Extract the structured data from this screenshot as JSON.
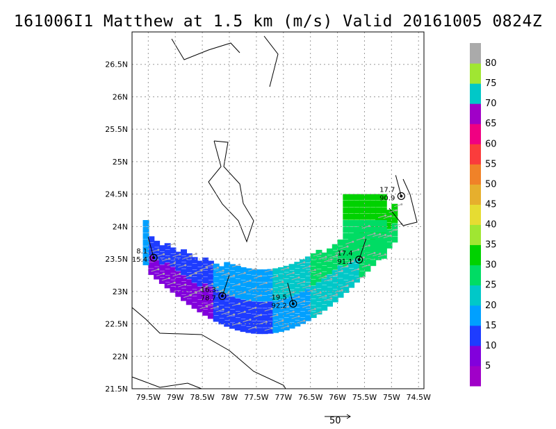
{
  "title": "161006I1 Matthew at 1.5 km (m/s) Valid 20161005 0824Z",
  "axes": {
    "lon_ticks": [
      "79.5W",
      "79W",
      "78.5W",
      "78W",
      "77.5W",
      "77W",
      "76.5W",
      "76W",
      "75.5W",
      "75W",
      "74.5W"
    ],
    "lat_ticks": [
      "21.5N",
      "22N",
      "22.5N",
      "23N",
      "23.5N",
      "24N",
      "24.5N",
      "25N",
      "25.5N",
      "26N",
      "26.5N"
    ],
    "lon_range": [
      -79.8,
      -74.4
    ],
    "lat_range": [
      21.5,
      27.0
    ],
    "grid": true
  },
  "colorbar": {
    "labels": [
      "5",
      "10",
      "15",
      "20",
      "25",
      "30",
      "35",
      "40",
      "45",
      "50",
      "55",
      "60",
      "65",
      "70",
      "75",
      "80"
    ],
    "colors": [
      "#a000c8",
      "#8200dc",
      "#1e3cff",
      "#00a0ff",
      "#00c8c8",
      "#00dc64",
      "#00d200",
      "#a0e632",
      "#e6dc32",
      "#e6af2d",
      "#f08228",
      "#fa3c3c",
      "#f00082",
      "#a000c8",
      "#00c8c8",
      "#a0e632",
      "#aaaaaa"
    ]
  },
  "storm_centers": [
    {
      "speed": "8.1",
      "pressure": "15.4",
      "lon": -79.4,
      "lat": 23.52
    },
    {
      "speed": "16.3",
      "pressure": "78.7",
      "lon": -78.13,
      "lat": 22.93
    },
    {
      "speed": "19.5",
      "pressure": "92.2",
      "lon": -76.82,
      "lat": 22.81
    },
    {
      "speed": "17.4",
      "pressure": "91.1",
      "lon": -75.6,
      "lat": 23.49
    },
    {
      "speed": "17.7",
      "pressure": "90.9",
      "lon": -74.82,
      "lat": 24.47
    }
  ],
  "reference_vector": {
    "value": "50"
  },
  "colors": {
    "coastline": "#000000",
    "grid": "#999999",
    "wind_arrow": "#aaaaaa"
  }
}
